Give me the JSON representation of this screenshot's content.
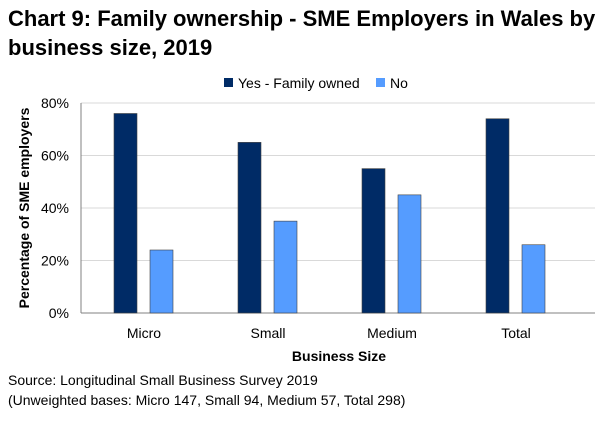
{
  "chart_data": {
    "type": "bar",
    "title": "Chart 9: Family ownership - SME Employers in Wales by business size, 2019",
    "categories": [
      "Micro",
      "Small",
      "Medium",
      "Total"
    ],
    "series": [
      {
        "name": "Yes - Family owned",
        "color": "#002B66",
        "values": [
          76,
          65,
          55,
          74
        ]
      },
      {
        "name": "No",
        "color": "#559CFF",
        "values": [
          24,
          35,
          45,
          26
        ]
      }
    ],
    "xlabel": "Business Size",
    "ylabel": "Percentage of SME employers",
    "ylim": [
      0,
      80
    ],
    "yticks": [
      0,
      20,
      40,
      60,
      80
    ],
    "ytick_labels": [
      "0%",
      "20%",
      "40%",
      "60%",
      "80%"
    ],
    "grid": true,
    "legend": "top"
  },
  "source": "Source: Longitudinal Small Business Survey 2019",
  "bases": "(Unweighted bases: Micro 147, Small 94, Medium 57, Total 298)"
}
